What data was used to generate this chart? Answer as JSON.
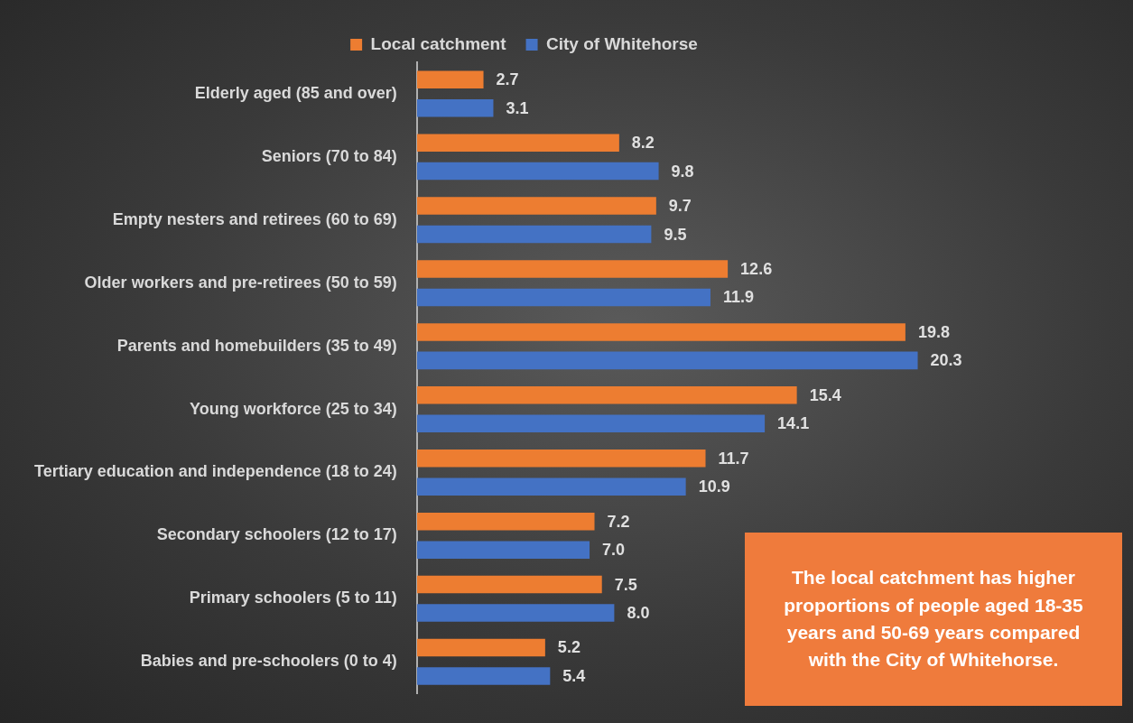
{
  "chart_data": {
    "type": "bar",
    "orientation": "horizontal",
    "categories": [
      "Elderly aged (85 and over)",
      "Seniors (70 to 84)",
      "Empty nesters and retirees (60 to 69)",
      "Older workers and pre-retirees (50 to 59)",
      "Parents and homebuilders (35 to 49)",
      "Young workforce (25 to 34)",
      "Tertiary education and independence (18 to 24)",
      "Secondary schoolers (12 to 17)",
      "Primary schoolers (5 to 11)",
      "Babies and pre-schoolers (0 to 4)"
    ],
    "series": [
      {
        "name": "Local catchment",
        "color": "#ed7d31",
        "values": [
          2.7,
          8.2,
          9.7,
          12.6,
          19.8,
          15.4,
          11.7,
          7.2,
          7.5,
          5.2
        ],
        "value_labels": [
          "2.7",
          "8.2",
          "9.7",
          "12.6",
          "19.8",
          "15.4",
          "11.7",
          "7.2",
          "7.5",
          "5.2"
        ]
      },
      {
        "name": "City of Whitehorse",
        "color": "#4472c4",
        "values": [
          3.1,
          9.8,
          9.5,
          11.9,
          20.3,
          14.1,
          10.9,
          7.0,
          8.0,
          5.4
        ],
        "value_labels": [
          "3.1",
          "9.8",
          "9.5",
          "11.9",
          "20.3",
          "14.1",
          "10.9",
          "7.0",
          "8.0",
          "5.4"
        ]
      }
    ],
    "tick_labels": "y",
    "grid": false,
    "legend": "top",
    "annotations": [
      "The local catchment has higher proportions of people aged 18-35 years and 50-69 years compared with the City of Whitehorse."
    ]
  }
}
